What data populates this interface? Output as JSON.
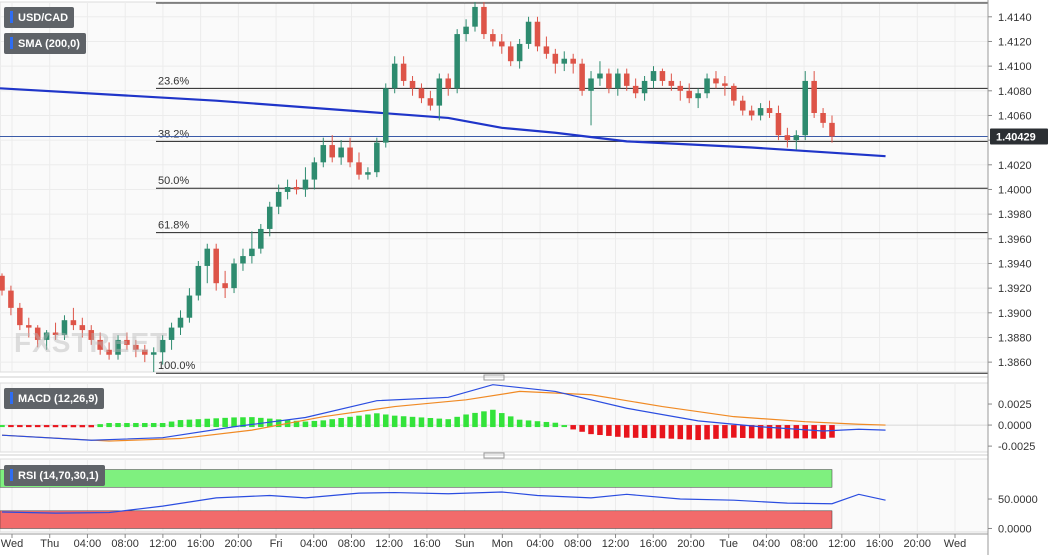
{
  "panels": {
    "price": {
      "symbol_label": "USD/CAD",
      "indicator_label": "SMA (200,0)",
      "last_price": "1.40429",
      "y_ticks": [
        "1.4140",
        "1.4120",
        "1.4100",
        "1.4080",
        "1.4060",
        "1.4040",
        "1.4020",
        "1.4000",
        "1.3980",
        "1.3960",
        "1.3940",
        "1.3920",
        "1.3900",
        "1.3880",
        "1.3860"
      ],
      "fib_levels": [
        {
          "label": "23.6%",
          "value": 1.4082
        },
        {
          "label": "38.2%",
          "value": 1.4039
        },
        {
          "label": "50.0%",
          "value": 1.4001
        },
        {
          "label": "61.8%",
          "value": 1.3965
        },
        {
          "label": "100.0%",
          "value": 1.3851
        }
      ]
    },
    "macd": {
      "label": "MACD (12,26,9)",
      "y_ticks": [
        "0.0025",
        "0.0000",
        "-0.0025"
      ]
    },
    "rsi": {
      "label": "RSI (14,70,30,1)",
      "y_ticks": [
        "50.0000",
        "0.0000"
      ]
    }
  },
  "x_axis": {
    "labels": [
      "Wed",
      "Thu",
      "04:00",
      "08:00",
      "12:00",
      "16:00",
      "20:00",
      "Fri",
      "04:00",
      "08:00",
      "12:00",
      "16:00",
      "Sun",
      "Mon",
      "04:00",
      "08:00",
      "12:00",
      "16:00",
      "20:00",
      "Tue",
      "04:00",
      "08:00",
      "12:00",
      "16:00",
      "20:00",
      "Wed"
    ]
  },
  "watermark": "FXSTREET",
  "colors": {
    "bull": "#2e8b6f",
    "bear": "#dd5448",
    "sma": "#1f35c9",
    "macd_line": "#2b4de0",
    "signal_line": "#f08a24",
    "hist_pos": "#33e33a",
    "hist_neg": "#e8141c",
    "rsi_line": "#2b4de0",
    "rsi_overbought": "#7ff07f",
    "rsi_oversold": "#f26b6b",
    "label_bg": "#5f6368"
  },
  "chart_data": [
    {
      "type": "candlestick",
      "title": "USD/CAD",
      "ylim": [
        1.3852,
        1.4152
      ],
      "last_value": 1.40429,
      "sma_200_approx": [
        [
          0,
          1.4082
        ],
        [
          24,
          1.4072
        ],
        [
          50,
          1.4058
        ],
        [
          56,
          1.405
        ],
        [
          62,
          1.4046
        ],
        [
          70,
          1.4039
        ],
        [
          84,
          1.4034
        ],
        [
          99,
          1.4027
        ]
      ],
      "ohlc": [
        [
          1.393,
          1.3932,
          1.3914,
          1.3918
        ],
        [
          1.3918,
          1.3922,
          1.3898,
          1.3904
        ],
        [
          1.3904,
          1.3908,
          1.3886,
          1.389
        ],
        [
          1.389,
          1.3896,
          1.388,
          1.3888
        ],
        [
          1.3888,
          1.389,
          1.3872,
          1.3878
        ],
        [
          1.3878,
          1.3886,
          1.387,
          1.3884
        ],
        [
          1.3884,
          1.3892,
          1.3878,
          1.3882
        ],
        [
          1.3882,
          1.3898,
          1.3878,
          1.3894
        ],
        [
          1.3894,
          1.3904,
          1.3886,
          1.389
        ],
        [
          1.389,
          1.3896,
          1.388,
          1.3886
        ],
        [
          1.3886,
          1.389,
          1.3874,
          1.3878
        ],
        [
          1.3878,
          1.3884,
          1.3866,
          1.387
        ],
        [
          1.387,
          1.3876,
          1.3862,
          1.3866
        ],
        [
          1.3866,
          1.3882,
          1.3862,
          1.3878
        ],
        [
          1.3878,
          1.3884,
          1.387,
          1.3874
        ],
        [
          1.3874,
          1.3878,
          1.3864,
          1.387
        ],
        [
          1.387,
          1.3874,
          1.386,
          1.3866
        ],
        [
          1.3866,
          1.3872,
          1.3852,
          1.3868
        ],
        [
          1.3868,
          1.3882,
          1.3858,
          1.3878
        ],
        [
          1.3878,
          1.3892,
          1.387,
          1.3888
        ],
        [
          1.3888,
          1.3902,
          1.3882,
          1.3896
        ],
        [
          1.3896,
          1.392,
          1.3892,
          1.3914
        ],
        [
          1.3914,
          1.3942,
          1.391,
          1.3938
        ],
        [
          1.3938,
          1.3956,
          1.3924,
          1.3952
        ],
        [
          1.3952,
          1.3956,
          1.3918,
          1.3924
        ],
        [
          1.3924,
          1.3934,
          1.3912,
          1.392
        ],
        [
          1.392,
          1.3944,
          1.3916,
          1.394
        ],
        [
          1.394,
          1.3952,
          1.3934,
          1.3946
        ],
        [
          1.3946,
          1.3966,
          1.394,
          1.3952
        ],
        [
          1.3952,
          1.3972,
          1.3948,
          1.3968
        ],
        [
          1.3968,
          1.399,
          1.3962,
          1.3986
        ],
        [
          1.3986,
          1.4004,
          1.398,
          1.3998
        ],
        [
          1.3998,
          1.4008,
          1.3992,
          1.4002
        ],
        [
          1.4002,
          1.4008,
          1.3996,
          1.4
        ],
        [
          1.4,
          1.4018,
          1.3994,
          1.4008
        ],
        [
          1.4008,
          1.4026,
          1.4,
          1.4022
        ],
        [
          1.4022,
          1.4042,
          1.4018,
          1.4036
        ],
        [
          1.4036,
          1.4044,
          1.4022,
          1.4026
        ],
        [
          1.4026,
          1.404,
          1.402,
          1.4034
        ],
        [
          1.4034,
          1.4042,
          1.4018,
          1.4022
        ],
        [
          1.4022,
          1.403,
          1.4008,
          1.4012
        ],
        [
          1.4012,
          1.4018,
          1.4008,
          1.4014
        ],
        [
          1.4014,
          1.4042,
          1.401,
          1.4038
        ],
        [
          1.4038,
          1.4086,
          1.4034,
          1.4082
        ],
        [
          1.4082,
          1.4108,
          1.4078,
          1.4102
        ],
        [
          1.4102,
          1.4108,
          1.4084,
          1.4088
        ],
        [
          1.4088,
          1.4092,
          1.4076,
          1.4082
        ],
        [
          1.4082,
          1.4086,
          1.407,
          1.4074
        ],
        [
          1.4074,
          1.408,
          1.4064,
          1.4068
        ],
        [
          1.4068,
          1.4094,
          1.4056,
          1.409
        ],
        [
          1.409,
          1.4094,
          1.4076,
          1.4082
        ],
        [
          1.4082,
          1.413,
          1.4078,
          1.4126
        ],
        [
          1.4126,
          1.4138,
          1.412,
          1.4132
        ],
        [
          1.4132,
          1.4152,
          1.4128,
          1.4148
        ],
        [
          1.4148,
          1.4152,
          1.4122,
          1.4126
        ],
        [
          1.4126,
          1.413,
          1.4116,
          1.412
        ],
        [
          1.412,
          1.4126,
          1.411,
          1.4116
        ],
        [
          1.4116,
          1.412,
          1.41,
          1.4104
        ],
        [
          1.4104,
          1.4122,
          1.4098,
          1.4118
        ],
        [
          1.4118,
          1.414,
          1.4114,
          1.4136
        ],
        [
          1.4136,
          1.414,
          1.4112,
          1.4116
        ],
        [
          1.4116,
          1.4124,
          1.4106,
          1.411
        ],
        [
          1.411,
          1.4114,
          1.4094,
          1.4102
        ],
        [
          1.4102,
          1.4112,
          1.4096,
          1.4106
        ],
        [
          1.4106,
          1.411,
          1.4094,
          1.4102
        ],
        [
          1.4102,
          1.4106,
          1.4076,
          1.408
        ],
        [
          1.408,
          1.4096,
          1.4052,
          1.409
        ],
        [
          1.409,
          1.4104,
          1.4084,
          1.4094
        ],
        [
          1.4094,
          1.4098,
          1.4078,
          1.4082
        ],
        [
          1.4082,
          1.4098,
          1.4076,
          1.4094
        ],
        [
          1.4094,
          1.4098,
          1.408,
          1.4084
        ],
        [
          1.4084,
          1.409,
          1.4074,
          1.4078
        ],
        [
          1.4078,
          1.4092,
          1.4072,
          1.4088
        ],
        [
          1.4088,
          1.41,
          1.4082,
          1.4096
        ],
        [
          1.4096,
          1.4098,
          1.4084,
          1.4088
        ],
        [
          1.4088,
          1.4094,
          1.408,
          1.4084
        ],
        [
          1.4084,
          1.4088,
          1.4072,
          1.408
        ],
        [
          1.408,
          1.4086,
          1.407,
          1.4074
        ],
        [
          1.4074,
          1.4082,
          1.4066,
          1.4078
        ],
        [
          1.4078,
          1.4094,
          1.4074,
          1.409
        ],
        [
          1.409,
          1.4096,
          1.4082,
          1.4086
        ],
        [
          1.4086,
          1.4092,
          1.4076,
          1.4084
        ],
        [
          1.4084,
          1.4086,
          1.4068,
          1.4072
        ],
        [
          1.4072,
          1.4076,
          1.406,
          1.4064
        ],
        [
          1.4064,
          1.4068,
          1.4056,
          1.406
        ],
        [
          1.406,
          1.407,
          1.4056,
          1.4066
        ],
        [
          1.4066,
          1.4072,
          1.4058,
          1.4062
        ],
        [
          1.4062,
          1.4068,
          1.404,
          1.4044
        ],
        [
          1.4044,
          1.405,
          1.4034,
          1.404
        ],
        [
          1.404,
          1.4048,
          1.4032,
          1.4044
        ],
        [
          1.4044,
          1.4096,
          1.404,
          1.4088
        ],
        [
          1.4088,
          1.4096,
          1.4058,
          1.4062
        ],
        [
          1.4062,
          1.4066,
          1.405,
          1.4054
        ],
        [
          1.4054,
          1.406,
          1.4038,
          1.4043
        ]
      ]
    },
    {
      "type": "line",
      "title": "MACD (12,26,9)",
      "ylim": [
        -0.0032,
        0.005
      ],
      "yticks": [
        0.0025,
        0.0,
        -0.0025
      ],
      "series": [
        {
          "name": "MACD",
          "points": [
            [
              0,
              -0.0012
            ],
            [
              10,
              -0.0018
            ],
            [
              18,
              -0.0015
            ],
            [
              26,
              -0.0002
            ],
            [
              34,
              0.0009
            ],
            [
              42,
              0.0029
            ],
            [
              50,
              0.0033
            ],
            [
              55,
              0.0048
            ],
            [
              62,
              0.004
            ],
            [
              70,
              0.002
            ],
            [
              78,
              0.0005
            ],
            [
              85,
              -0.0002
            ],
            [
              92,
              -0.0007
            ],
            [
              96,
              -0.0005
            ],
            [
              99,
              -0.0006
            ]
          ]
        },
        {
          "name": "Signal",
          "points": [
            [
              0,
              -0.0012
            ],
            [
              12,
              -0.0019
            ],
            [
              20,
              -0.0016
            ],
            [
              28,
              -0.0006
            ],
            [
              36,
              0.001
            ],
            [
              44,
              0.0022
            ],
            [
              52,
              0.003
            ],
            [
              58,
              0.004
            ],
            [
              66,
              0.0036
            ],
            [
              74,
              0.0022
            ],
            [
              82,
              0.001
            ],
            [
              90,
              0.0004
            ],
            [
              96,
              0.0001
            ],
            [
              99,
              0.0
            ]
          ]
        }
      ]
    },
    {
      "type": "line",
      "title": "RSI (14,70,30,1)",
      "ylim": [
        -6,
        118
      ],
      "yticks": [
        50,
        0
      ],
      "overbought": 70,
      "oversold": 30,
      "series": [
        {
          "name": "RSI",
          "points": [
            [
              0,
              28
            ],
            [
              6,
              26
            ],
            [
              12,
              27
            ],
            [
              18,
              38
            ],
            [
              24,
              52
            ],
            [
              30,
              56
            ],
            [
              34,
              52
            ],
            [
              40,
              60
            ],
            [
              44,
              61
            ],
            [
              50,
              59
            ],
            [
              56,
              62
            ],
            [
              60,
              56
            ],
            [
              66,
              52
            ],
            [
              70,
              58
            ],
            [
              76,
              50
            ],
            [
              82,
              48
            ],
            [
              88,
              43
            ],
            [
              93,
              42
            ],
            [
              96,
              58
            ],
            [
              99,
              48
            ]
          ]
        }
      ]
    }
  ]
}
